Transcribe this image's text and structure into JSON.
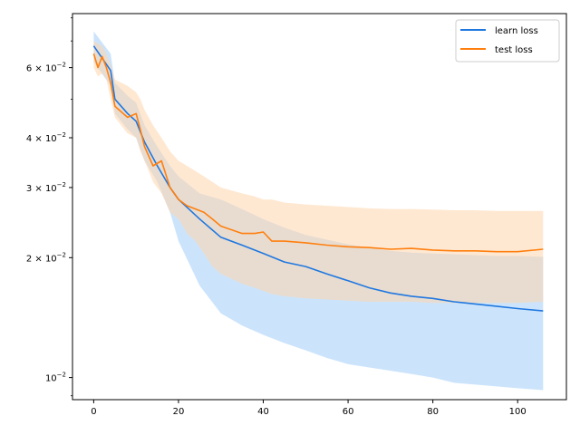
{
  "chart_data": {
    "type": "line",
    "title": "",
    "xlabel": "",
    "ylabel": "",
    "yscale": "log",
    "xlim": [
      -5,
      111.5
    ],
    "ylim": [
      0.0088,
      0.082
    ],
    "grid": false,
    "legend_position": "top-right",
    "x_ticks": [
      0,
      20,
      40,
      60,
      80,
      100
    ],
    "x_tick_labels": [
      "0",
      "20",
      "40",
      "60",
      "80",
      "100"
    ],
    "y_major_ticks": [
      {
        "value": 0.01,
        "base": "10",
        "exp": "−2",
        "mant": ""
      },
      {
        "value": 0.02,
        "base": "10",
        "exp": "−2",
        "mant": "2 × "
      },
      {
        "value": 0.03,
        "base": "10",
        "exp": "−2",
        "mant": "3 × "
      },
      {
        "value": 0.04,
        "base": "10",
        "exp": "−2",
        "mant": "4 × "
      },
      {
        "value": 0.06,
        "base": "10",
        "exp": "−2",
        "mant": "6 × "
      }
    ],
    "y_minor_ticks": [
      0.009,
      0.05,
      0.07,
      0.08
    ],
    "series": [
      {
        "name": "learn loss",
        "color": "#1f77e0",
        "band_color": "#a3cdf7",
        "x": [
          0,
          4,
          5,
          8,
          10,
          12,
          15,
          18,
          20,
          25,
          30,
          35,
          40,
          45,
          50,
          55,
          60,
          65,
          70,
          75,
          80,
          85,
          90,
          95,
          100,
          106
        ],
        "y": [
          0.068,
          0.059,
          0.05,
          0.046,
          0.044,
          0.039,
          0.034,
          0.03,
          0.028,
          0.025,
          0.0225,
          0.0215,
          0.0205,
          0.0195,
          0.019,
          0.0182,
          0.0175,
          0.0168,
          0.0163,
          0.016,
          0.0158,
          0.0155,
          0.0153,
          0.0151,
          0.0149,
          0.0147
        ],
        "band_upper": [
          0.074,
          0.065,
          0.055,
          0.051,
          0.049,
          0.043,
          0.038,
          0.034,
          0.032,
          0.029,
          0.028,
          0.0265,
          0.025,
          0.0238,
          0.0228,
          0.0222,
          0.0216,
          0.0212,
          0.0208,
          0.0206,
          0.0205,
          0.0204,
          0.0203,
          0.0202,
          0.0202,
          0.0201
        ],
        "band_lower": [
          0.062,
          0.054,
          0.046,
          0.042,
          0.04,
          0.035,
          0.031,
          0.026,
          0.022,
          0.017,
          0.0145,
          0.0135,
          0.0128,
          0.0122,
          0.0117,
          0.0112,
          0.0108,
          0.0106,
          0.0104,
          0.0102,
          0.01,
          0.0097,
          0.0096,
          0.0095,
          0.0094,
          0.0093
        ]
      },
      {
        "name": "test loss",
        "color": "#ff7f0e",
        "band_color": "#ffd6ad",
        "x": [
          0,
          1,
          2,
          3,
          4,
          5,
          8,
          10,
          11,
          12,
          14,
          16,
          18,
          20,
          22,
          24,
          26,
          28,
          30,
          35,
          38,
          40,
          42,
          45,
          50,
          55,
          60,
          65,
          70,
          75,
          80,
          85,
          90,
          95,
          100,
          106
        ],
        "y": [
          0.065,
          0.06,
          0.064,
          0.06,
          0.055,
          0.048,
          0.045,
          0.046,
          0.042,
          0.038,
          0.034,
          0.035,
          0.03,
          0.028,
          0.027,
          0.0265,
          0.026,
          0.025,
          0.024,
          0.023,
          0.023,
          0.0232,
          0.022,
          0.022,
          0.0218,
          0.0215,
          0.0213,
          0.0212,
          0.021,
          0.0211,
          0.0209,
          0.0208,
          0.0208,
          0.0207,
          0.0207,
          0.021
        ],
        "band_upper": [
          0.07,
          0.069,
          0.068,
          0.065,
          0.061,
          0.056,
          0.054,
          0.052,
          0.05,
          0.047,
          0.043,
          0.04,
          0.037,
          0.035,
          0.034,
          0.033,
          0.032,
          0.031,
          0.03,
          0.029,
          0.0285,
          0.028,
          0.028,
          0.0275,
          0.0272,
          0.027,
          0.0268,
          0.0266,
          0.0265,
          0.0265,
          0.0264,
          0.0263,
          0.0263,
          0.0262,
          0.0262,
          0.0262
        ],
        "band_lower": [
          0.06,
          0.057,
          0.058,
          0.056,
          0.05,
          0.045,
          0.041,
          0.04,
          0.037,
          0.035,
          0.031,
          0.029,
          0.026,
          0.025,
          0.023,
          0.022,
          0.0205,
          0.019,
          0.0182,
          0.0172,
          0.0168,
          0.0165,
          0.0162,
          0.016,
          0.0158,
          0.0157,
          0.0156,
          0.0155,
          0.0155,
          0.0155,
          0.0154,
          0.0154,
          0.0154,
          0.0154,
          0.0154,
          0.0155
        ]
      }
    ]
  }
}
